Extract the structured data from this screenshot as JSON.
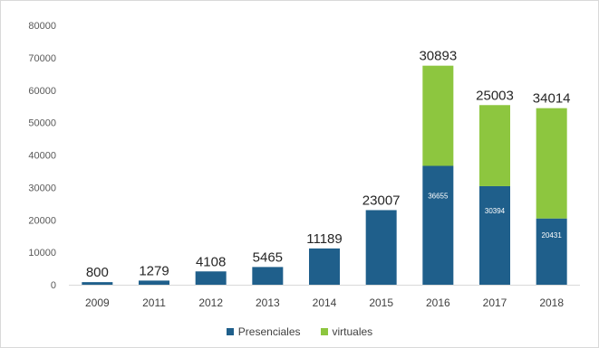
{
  "chart_data": {
    "type": "bar",
    "stacked": true,
    "categories": [
      "2009",
      "2011",
      "2012",
      "2013",
      "2014",
      "2015",
      "2016",
      "2017",
      "2018"
    ],
    "series": [
      {
        "name": "Presenciales",
        "color": "#1f5f8b",
        "values": [
          800,
          1279,
          4108,
          5465,
          11189,
          23007,
          36655,
          30394,
          20431
        ],
        "labels": [
          "",
          "",
          "",
          "",
          "",
          "",
          "36655",
          "30394",
          "20431"
        ]
      },
      {
        "name": "virtuales",
        "color": "#8dc63f",
        "values": [
          0,
          0,
          0,
          0,
          0,
          0,
          30893,
          25003,
          34014
        ],
        "labels": [
          "",
          "",
          "",
          "",
          "",
          "",
          "",
          "",
          ""
        ]
      }
    ],
    "top_labels": [
      "800",
      "1279",
      "4108",
      "5465",
      "11189",
      "23007",
      "30893",
      "25003",
      "34014"
    ],
    "y_ticks": [
      "0",
      "10000",
      "20000",
      "30000",
      "40000",
      "50000",
      "60000",
      "70000",
      "80000"
    ],
    "ylim": [
      0,
      80000
    ],
    "grid": false,
    "legend_position": "bottom"
  }
}
